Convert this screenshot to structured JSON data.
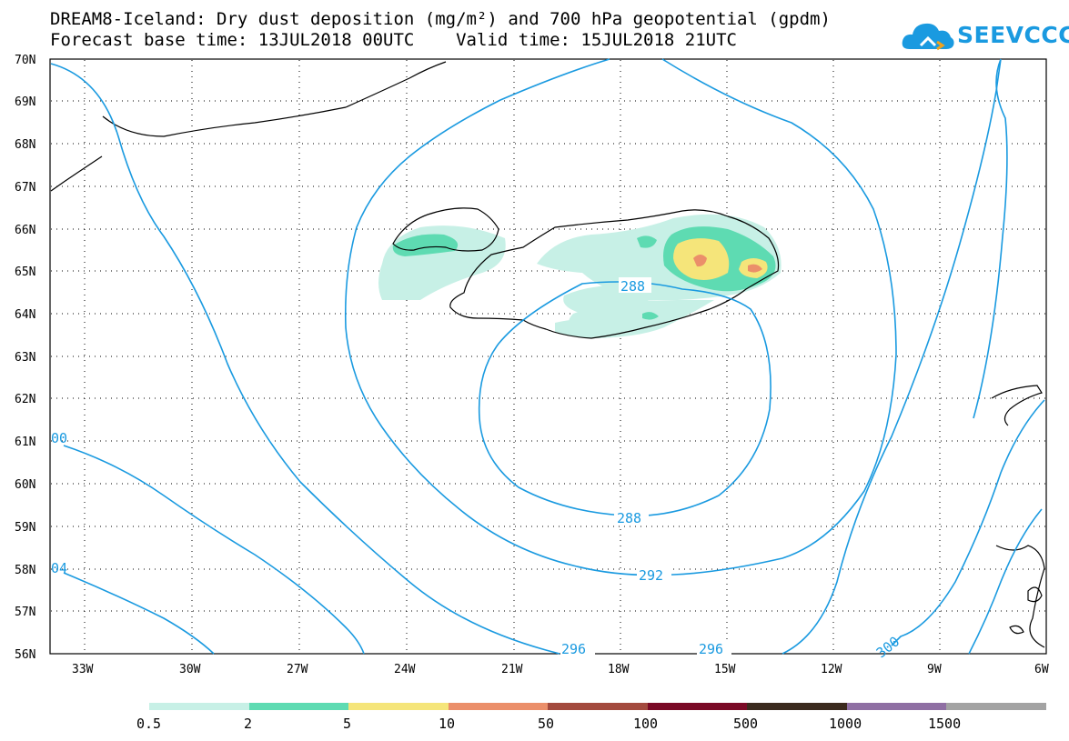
{
  "title": {
    "line1": "DREAM8-Iceland: Dry dust deposition (mg/m²) and 700 hPa geopotential (gpdm)",
    "line2": "Forecast base time: 13JUL2018 00UTC    Valid time: 15JUL2018 21UTC"
  },
  "logo": {
    "text": "SEEVCCC",
    "color": "#1a9ae0"
  },
  "axes": {
    "lat_labels": [
      "70N",
      "69N",
      "68N",
      "67N",
      "66N",
      "65N",
      "64N",
      "63N",
      "62N",
      "61N",
      "60N",
      "59N",
      "58N",
      "57N",
      "56N"
    ],
    "lon_labels": [
      "33W",
      "30W",
      "27W",
      "24W",
      "21W",
      "18W",
      "15W",
      "12W",
      "9W",
      "6W"
    ]
  },
  "contours": {
    "color": "#1a9ae0",
    "labels": [
      "288",
      "288",
      "292",
      "296",
      "296",
      "300",
      "00",
      "04"
    ]
  },
  "legend": {
    "colors": [
      "#c7f0e6",
      "#5edbb2",
      "#f5e57a",
      "#eb8f6a",
      "#a34a3e",
      "#7a0a26",
      "#3b2a1e",
      "#8f6fa3",
      "#a3a3a3"
    ],
    "labels": [
      "0.5",
      "2",
      "5",
      "10",
      "50",
      "100",
      "500",
      "1000",
      "1500"
    ]
  }
}
